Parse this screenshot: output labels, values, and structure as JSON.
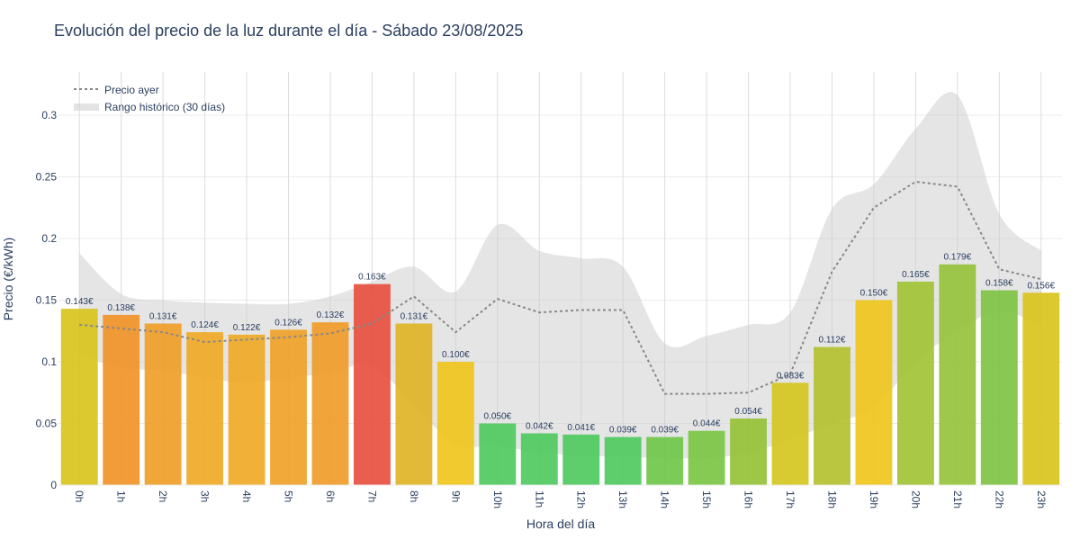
{
  "chart_data": {
    "type": "bar",
    "title": "Evolución del precio de la luz durante el día - Sábado 23/08/2025",
    "xlabel": "Hora del día",
    "ylabel": "Precio (€/kWh)",
    "ylim": [
      0,
      0.335
    ],
    "y_ticks": [
      0,
      0.05,
      0.1,
      0.15,
      0.2,
      0.25,
      0.3
    ],
    "y_tick_labels": [
      "0",
      "0.05",
      "0.1",
      "0.15",
      "0.2",
      "0.25",
      "0.3"
    ],
    "grid": true,
    "legend_position": "top-left",
    "categories": [
      "0h",
      "1h",
      "2h",
      "3h",
      "4h",
      "5h",
      "6h",
      "7h",
      "8h",
      "9h",
      "10h",
      "11h",
      "12h",
      "13h",
      "14h",
      "15h",
      "16h",
      "17h",
      "18h",
      "19h",
      "20h",
      "21h",
      "22h",
      "23h"
    ],
    "values": [
      0.143,
      0.138,
      0.131,
      0.124,
      0.122,
      0.126,
      0.132,
      0.163,
      0.131,
      0.1,
      0.05,
      0.042,
      0.041,
      0.039,
      0.039,
      0.044,
      0.054,
      0.083,
      0.112,
      0.15,
      0.165,
      0.179,
      0.158,
      0.156
    ],
    "value_labels": [
      "0.143€",
      "0.138€",
      "0.131€",
      "0.124€",
      "0.122€",
      "0.126€",
      "0.132€",
      "0.163€",
      "0.131€",
      "0.100€",
      "0.050€",
      "0.042€",
      "0.041€",
      "0.039€",
      "0.039€",
      "0.044€",
      "0.054€",
      "0.083€",
      "0.112€",
      "0.150€",
      "0.165€",
      "0.179€",
      "0.158€",
      "0.156€"
    ],
    "bar_colors": [
      "#d8c218",
      "#ef9124",
      "#ef9c24",
      "#efa824",
      "#efa824",
      "#efa024",
      "#ef9a24",
      "#e84c3c",
      "#e0b222",
      "#f0c418",
      "#4cc95c",
      "#4cc95c",
      "#4cc95c",
      "#4cc95c",
      "#6cc545",
      "#78c440",
      "#94c134",
      "#d4c51c",
      "#b3c02a",
      "#f0c418",
      "#a0c232",
      "#92c238",
      "#7cc240",
      "#d8c218"
    ],
    "yesterday": {
      "name": "Precio ayer",
      "color": "#888888",
      "values": [
        0.13,
        0.127,
        0.124,
        0.116,
        0.118,
        0.12,
        0.123,
        0.131,
        0.153,
        0.124,
        0.151,
        0.14,
        0.142,
        0.142,
        0.074,
        0.074,
        0.075,
        0.09,
        0.173,
        0.225,
        0.246,
        0.242,
        0.175,
        0.167
      ]
    },
    "historical_range": {
      "name": "Rango histórico (30 días)",
      "color": "#cccccc",
      "upper": [
        0.188,
        0.155,
        0.15,
        0.148,
        0.147,
        0.147,
        0.153,
        0.165,
        0.177,
        0.157,
        0.211,
        0.19,
        0.184,
        0.177,
        0.115,
        0.121,
        0.13,
        0.14,
        0.224,
        0.244,
        0.289,
        0.316,
        0.22,
        0.19
      ],
      "lower": [
        0.106,
        0.095,
        0.093,
        0.087,
        0.083,
        0.087,
        0.091,
        0.097,
        0.065,
        0.033,
        0.032,
        0.026,
        0.024,
        0.023,
        0.022,
        0.022,
        0.026,
        0.037,
        0.05,
        0.063,
        0.1,
        0.125,
        0.141,
        0.13
      ]
    }
  }
}
